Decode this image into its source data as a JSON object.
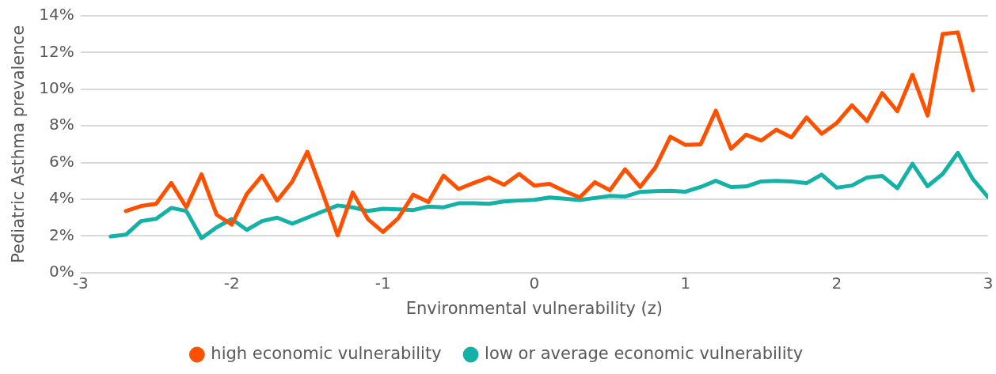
{
  "chart_data": {
    "type": "line",
    "xlabel": "Environmental vulnerability (z)",
    "ylabel": "Pediatric Asthma prevalence",
    "xlim": [
      -3,
      3
    ],
    "xticks": [
      -3,
      -2,
      -1,
      0,
      1,
      2,
      3
    ],
    "ylim": [
      0,
      14
    ],
    "yticks": [
      {
        "value": 0,
        "label": "0%"
      },
      {
        "value": 2,
        "label": "2%"
      },
      {
        "value": 4,
        "label": "4%"
      },
      {
        "value": 6,
        "label": "6%"
      },
      {
        "value": 8,
        "label": "8%"
      },
      {
        "value": 10,
        "label": "10%"
      },
      {
        "value": 12,
        "label": "12%"
      },
      {
        "value": 14,
        "label": "14%"
      }
    ],
    "grid": "y",
    "legend": "bottom",
    "marker": "none",
    "line_style": "solid",
    "series": [
      {
        "name": "high economic vulnerability",
        "color": "#ff5000",
        "x": [
          -2.7,
          -2.6,
          -2.5,
          -2.4,
          -2.3,
          -2.2,
          -2.1,
          -2.0,
          -1.9,
          -1.8,
          -1.7,
          -1.6,
          -1.5,
          -1.4,
          -1.3,
          -1.2,
          -1.1,
          -1.0,
          -0.9,
          -0.8,
          -0.7,
          -0.6,
          -0.5,
          -0.4,
          -0.3,
          -0.2,
          -0.1,
          0.0,
          0.1,
          0.2,
          0.3,
          0.4,
          0.5,
          0.6,
          0.7,
          0.8,
          0.9,
          1.0,
          1.1,
          1.2,
          1.3,
          1.4,
          1.5,
          1.6,
          1.7,
          1.8,
          1.9,
          2.0,
          2.1,
          2.2,
          2.3,
          2.4,
          2.5,
          2.6,
          2.7,
          2.8,
          2.9
        ],
        "values": [
          3.36,
          3.63,
          3.75,
          4.89,
          3.56,
          5.36,
          3.16,
          2.62,
          4.3,
          5.29,
          3.93,
          4.96,
          6.59,
          4.37,
          2.03,
          4.37,
          2.92,
          2.22,
          2.96,
          4.25,
          3.85,
          5.29,
          4.56,
          4.89,
          5.19,
          4.79,
          5.38,
          4.74,
          4.84,
          4.44,
          4.1,
          4.93,
          4.49,
          5.63,
          4.67,
          5.73,
          7.41,
          6.96,
          7.0,
          8.83,
          6.75,
          7.52,
          7.2,
          7.79,
          7.37,
          8.46,
          7.57,
          8.16,
          9.12,
          8.26,
          9.79,
          8.8,
          10.79,
          8.56,
          13.01,
          13.1,
          9.94
        ]
      },
      {
        "name": "low or average economic vulnerability",
        "color": "#14b1a7",
        "x": [
          -2.8,
          -2.7,
          -2.6,
          -2.5,
          -2.4,
          -2.3,
          -2.2,
          -2.1,
          -2.0,
          -1.9,
          -1.8,
          -1.7,
          -1.6,
          -1.5,
          -1.4,
          -1.3,
          -1.2,
          -1.1,
          -1.0,
          -0.9,
          -0.8,
          -0.7,
          -0.6,
          -0.5,
          -0.4,
          -0.3,
          -0.2,
          -0.1,
          0.0,
          0.1,
          0.2,
          0.3,
          0.4,
          0.5,
          0.6,
          0.7,
          0.8,
          0.9,
          1.0,
          1.1,
          1.2,
          1.3,
          1.4,
          1.5,
          1.6,
          1.7,
          1.8,
          1.9,
          2.0,
          2.1,
          2.2,
          2.3,
          2.4,
          2.5,
          2.6,
          2.7,
          2.8,
          2.9,
          3.0
        ],
        "values": [
          1.97,
          2.07,
          2.81,
          2.93,
          3.53,
          3.36,
          1.88,
          2.47,
          2.92,
          2.33,
          2.81,
          3.0,
          2.67,
          3.0,
          3.33,
          3.66,
          3.56,
          3.36,
          3.48,
          3.45,
          3.41,
          3.6,
          3.56,
          3.78,
          3.78,
          3.75,
          3.88,
          3.93,
          3.97,
          4.1,
          4.03,
          3.96,
          4.07,
          4.18,
          4.15,
          4.4,
          4.44,
          4.46,
          4.41,
          4.67,
          5.01,
          4.67,
          4.7,
          4.97,
          5.0,
          4.97,
          4.88,
          5.34,
          4.63,
          4.75,
          5.19,
          5.27,
          4.6,
          5.93,
          4.71,
          5.38,
          6.53,
          5.09,
          4.11
        ]
      }
    ]
  }
}
